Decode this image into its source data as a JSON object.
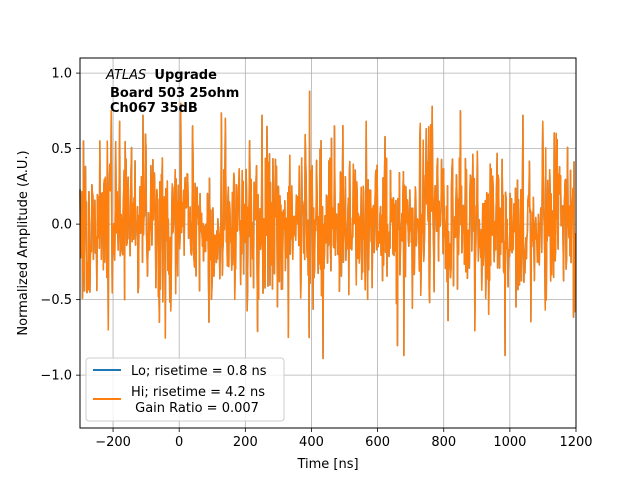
{
  "chart_data": {
    "type": "line",
    "title": "",
    "xlabel": "Time [ns]",
    "ylabel": "Normalized Amplitude (A.U.)",
    "xlim": [
      -300,
      1200
    ],
    "ylim": [
      -1.35,
      1.1
    ],
    "xticks": [
      -200,
      0,
      200,
      400,
      600,
      800,
      1000,
      1200
    ],
    "xtick_labels": [
      "−200",
      "0",
      "200",
      "400",
      "600",
      "800",
      "1000",
      "1200"
    ],
    "yticks": [
      -1.0,
      -0.5,
      0.0,
      0.5,
      1.0
    ],
    "ytick_labels": [
      "−1.0",
      "−0.5",
      "0.0",
      "0.5",
      "1.0"
    ],
    "grid": true,
    "legend_position": "lower-left",
    "annotation": {
      "italic": "ATLAS",
      "bold": "Upgrade",
      "line2": "Board 503 25ohm",
      "line3": "Ch067 35dB"
    },
    "series": [
      {
        "name": "Lo; risetime = 0.8 ns",
        "color": "#1f77b4",
        "description": "noise trace fully hidden under Hi trace",
        "noise_std": 0.25,
        "range": [
          -0.89,
          0.9
        ]
      },
      {
        "name": "Hi; risetime = 4.2 ns",
        "name_line2": " Gain Ratio = 0.007",
        "color": "#ff7f0e",
        "description": "noise trace",
        "noise_std": 0.25,
        "range": [
          -0.89,
          0.9
        ],
        "x_step_ns": 1.5,
        "peaks": [
          {
            "x": -290,
            "y": 0.55
          },
          {
            "x": -270,
            "y": -0.45
          },
          {
            "x": -240,
            "y": 0.55
          },
          {
            "x": -215,
            "y": -0.7
          },
          {
            "x": -205,
            "y": 0.75
          },
          {
            "x": -180,
            "y": 0.68
          },
          {
            "x": -165,
            "y": -0.5
          },
          {
            "x": -110,
            "y": 0.72
          },
          {
            "x": -60,
            "y": -0.65
          },
          {
            "x": 5,
            "y": 0.8
          },
          {
            "x": 40,
            "y": 0.65
          },
          {
            "x": 90,
            "y": -0.65
          },
          {
            "x": 140,
            "y": 0.7
          },
          {
            "x": 250,
            "y": 0.72
          },
          {
            "x": 330,
            "y": -0.75
          },
          {
            "x": 395,
            "y": 0.88
          },
          {
            "x": 435,
            "y": -0.89
          },
          {
            "x": 470,
            "y": 0.65
          },
          {
            "x": 565,
            "y": 0.68
          },
          {
            "x": 680,
            "y": -0.87
          },
          {
            "x": 765,
            "y": 0.78
          },
          {
            "x": 850,
            "y": 0.75
          },
          {
            "x": 985,
            "y": -0.87
          },
          {
            "x": 1040,
            "y": 0.72
          },
          {
            "x": 1100,
            "y": 0.68
          },
          {
            "x": 1140,
            "y": 0.6
          },
          {
            "x": 1195,
            "y": -0.58
          }
        ]
      }
    ]
  }
}
